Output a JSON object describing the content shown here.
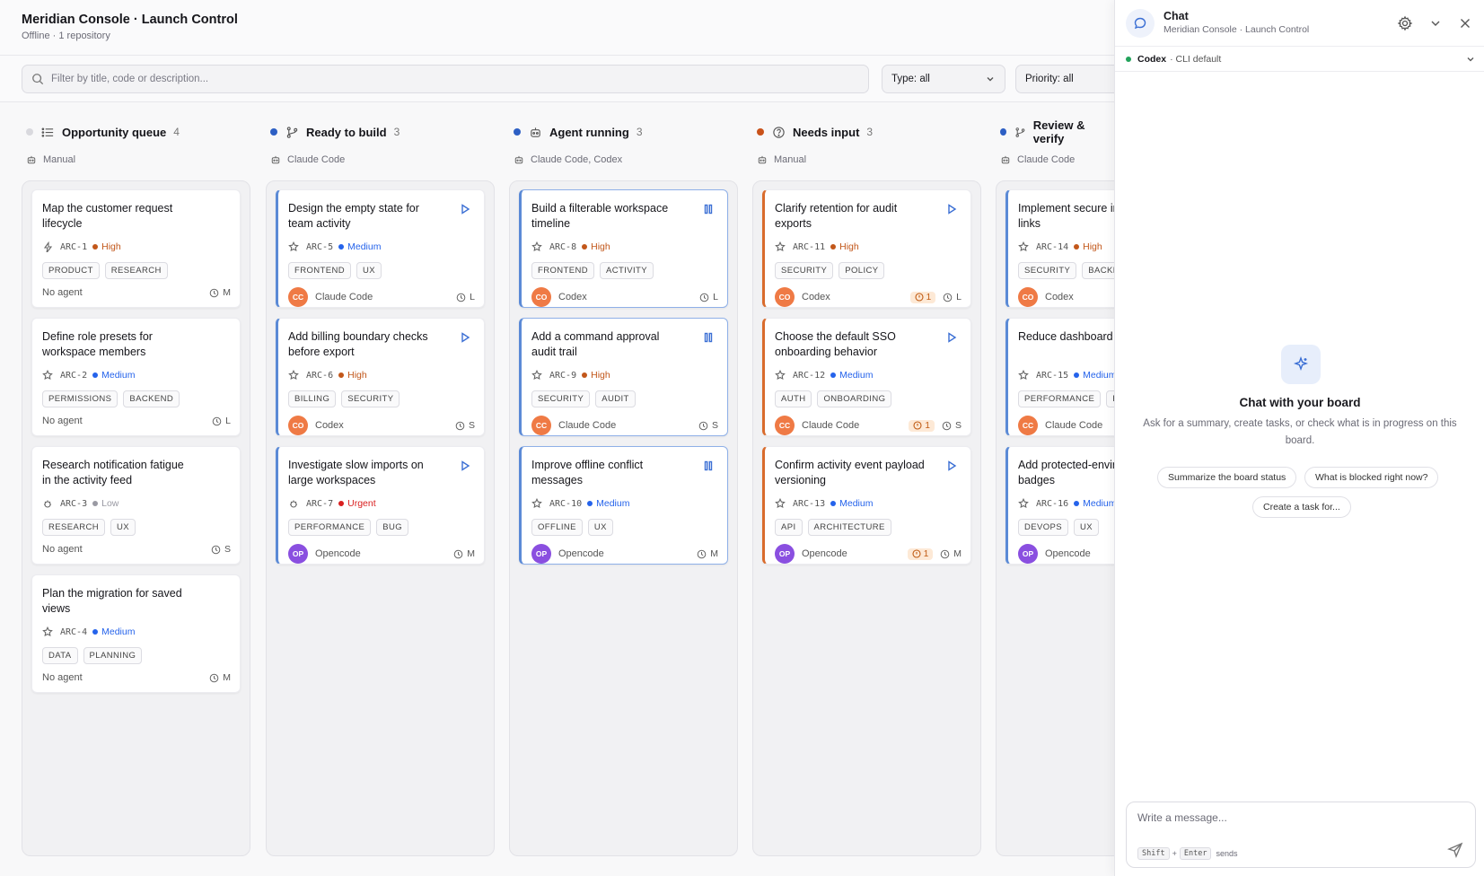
{
  "header": {
    "title": "Meridian Console · Launch Control",
    "subtitle": "Offline · 1 repository"
  },
  "filters": {
    "search_placeholder": "Filter by title, code or description...",
    "type_label": "Type: all",
    "priority_label": "Priority: all"
  },
  "colors": {
    "high": "#c2571a",
    "medium": "#2563eb",
    "low": "#9a9aa3",
    "urgent": "#d92020",
    "claude": "#ef7a45",
    "codex": "#ef7a45",
    "opencode": "#8a4fe0"
  },
  "columns": [
    {
      "name": "Opportunity queue",
      "count": "4",
      "agents": "Manual",
      "cards": [
        {
          "title": "Map the customer request lifecycle",
          "code": "ARC-1",
          "priority": "High",
          "tags": [
            "PRODUCT",
            "RESEARCH"
          ],
          "agent": "No agent",
          "size": "M"
        },
        {
          "title": "Define role presets for workspace members",
          "code": "ARC-2",
          "priority": "Medium",
          "tags": [
            "PERMISSIONS",
            "BACKEND"
          ],
          "agent": "No agent",
          "size": "L"
        },
        {
          "title": "Research notification fatigue in the activity feed",
          "code": "ARC-3",
          "priority": "Low",
          "tags": [
            "RESEARCH",
            "UX"
          ],
          "agent": "No agent",
          "size": "S"
        },
        {
          "title": "Plan the migration for saved views",
          "code": "ARC-4",
          "priority": "Medium",
          "tags": [
            "DATA",
            "PLANNING"
          ],
          "agent": "No agent",
          "size": "M"
        }
      ]
    },
    {
      "name": "Ready to build",
      "count": "3",
      "agents": "Claude Code",
      "cards": [
        {
          "title": "Design the empty state for team activity",
          "code": "ARC-5",
          "priority": "Medium",
          "tags": [
            "FRONTEND",
            "UX"
          ],
          "agent": "Claude Code",
          "avatar": "CC",
          "size": "L"
        },
        {
          "title": "Add billing boundary checks before export",
          "code": "ARC-6",
          "priority": "High",
          "tags": [
            "BILLING",
            "SECURITY"
          ],
          "agent": "Codex",
          "avatar": "CO",
          "size": "S"
        },
        {
          "title": "Investigate slow imports on large workspaces",
          "code": "ARC-7",
          "priority": "Urgent",
          "tags": [
            "PERFORMANCE",
            "BUG"
          ],
          "agent": "Opencode",
          "avatar": "OP",
          "size": "M"
        }
      ]
    },
    {
      "name": "Agent running",
      "count": "3",
      "agents": "Claude Code, Codex",
      "cards": [
        {
          "title": "Build a filterable workspace timeline",
          "code": "ARC-8",
          "priority": "High",
          "tags": [
            "FRONTEND",
            "ACTIVITY"
          ],
          "agent": "Codex",
          "avatar": "CO",
          "size": "L"
        },
        {
          "title": "Add a command approval audit trail",
          "code": "ARC-9",
          "priority": "High",
          "tags": [
            "SECURITY",
            "AUDIT"
          ],
          "agent": "Claude Code",
          "avatar": "CC",
          "size": "S"
        },
        {
          "title": "Improve offline conflict messages",
          "code": "ARC-10",
          "priority": "Medium",
          "tags": [
            "OFFLINE",
            "UX"
          ],
          "agent": "Opencode",
          "avatar": "OP",
          "size": "M"
        }
      ]
    },
    {
      "name": "Needs input",
      "count": "3",
      "agents": "Manual",
      "cards": [
        {
          "title": "Clarify retention for audit exports",
          "code": "ARC-11",
          "priority": "High",
          "tags": [
            "SECURITY",
            "POLICY"
          ],
          "agent": "Codex",
          "avatar": "CO",
          "size": "L",
          "questions": "1"
        },
        {
          "title": "Choose the default SSO onboarding behavior",
          "code": "ARC-12",
          "priority": "Medium",
          "tags": [
            "AUTH",
            "ONBOARDING"
          ],
          "agent": "Claude Code",
          "avatar": "CC",
          "size": "S",
          "questions": "1"
        },
        {
          "title": "Confirm activity event payload versioning",
          "code": "ARC-13",
          "priority": "Medium",
          "tags": [
            "API",
            "ARCHITECTURE"
          ],
          "agent": "Opencode",
          "avatar": "OP",
          "size": "M",
          "questions": "1"
        }
      ]
    },
    {
      "name": "Review & verify",
      "count": "",
      "agents": "Claude Code",
      "cards": [
        {
          "title": "Implement secure invitation links",
          "code": "ARC-14",
          "priority": "High",
          "tags": [
            "SECURITY",
            "BACKEND"
          ],
          "agent": "Codex",
          "avatar": "CO",
          "size": ""
        },
        {
          "title": "Reduce dashboard cost",
          "code": "ARC-15",
          "priority": "Medium",
          "tags": [
            "PERFORMANCE",
            "FRONTEND"
          ],
          "agent": "Claude Code",
          "avatar": "CC",
          "size": ""
        },
        {
          "title": "Add protected-environment badges",
          "code": "ARC-16",
          "priority": "Medium",
          "tags": [
            "DEVOPS",
            "UX"
          ],
          "agent": "Opencode",
          "avatar": "OP",
          "size": ""
        }
      ]
    }
  ],
  "chat": {
    "title": "Chat",
    "subtitle": "Meridian Console · Launch Control",
    "model_name": "Codex",
    "model_mode": "· CLI default",
    "empty_title": "Chat with your board",
    "empty_desc": "Ask for a summary, create tasks, or check what is in progress on this board.",
    "suggestions": [
      "Summarize the board status",
      "What is blocked right now?",
      "Create a task for..."
    ],
    "placeholder": "Write a message...",
    "hint_key1": "Shift",
    "hint_plus": "+",
    "hint_key2": "Enter",
    "hint_text": "sends"
  }
}
